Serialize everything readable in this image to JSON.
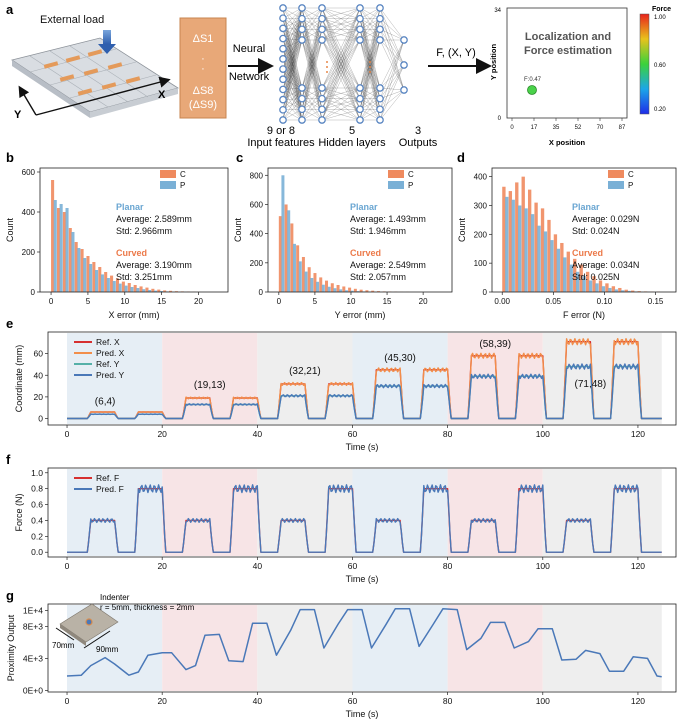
{
  "panels": {
    "a": {
      "label": "a",
      "external_load": "External load",
      "sensor_top": "ΔS1",
      "sensor_dots": "·",
      "sensor_bottom": "ΔS8",
      "sensor_bottom2": "(ΔS9)",
      "axis_x": "X",
      "axis_y": "Y",
      "arrow1_line1": "Neural",
      "arrow1_line2": "Network",
      "nn_inputs_line1": "9 or 8",
      "nn_inputs_line2": "Input features",
      "nn_hidden_line1": "5",
      "nn_hidden_line2": "Hidden layers",
      "nn_outputs_line1": "3",
      "nn_outputs_line2": "Outputs",
      "arrow2_label": "F, (X, Y)",
      "result_title_line1": "Localization and",
      "result_title_line2": "Force estimation",
      "result_xlabel": "X position",
      "result_ylabel": "Y position",
      "result_xticks": [
        "0",
        "17",
        "35",
        "52",
        "70",
        "87"
      ],
      "result_yticks": [
        "0",
        "34"
      ],
      "result_point_label": "F:0.47",
      "colorbar_title": "Force",
      "colorbar_ticks": [
        "1.00",
        "0.60",
        "0.20"
      ]
    },
    "b": {
      "label": "b"
    },
    "c": {
      "label": "c"
    },
    "d": {
      "label": "d"
    },
    "e": {
      "label": "e"
    },
    "f": {
      "label": "f"
    },
    "g": {
      "label": "g",
      "indenter_line1": "Indenter",
      "indenter_line2": "r = 5mm, thickness = 2mm",
      "dim_height": "70mm",
      "dim_width": "90mm"
    }
  },
  "chart_data": [
    {
      "id": "b",
      "type": "bar",
      "xlabel": "X error (mm)",
      "ylabel": "Count",
      "xlim": [
        -1.5,
        24
      ],
      "ylim": [
        0,
        620
      ],
      "xticks": [
        0,
        5,
        10,
        15,
        20
      ],
      "yticks": [
        0,
        200,
        400,
        600
      ],
      "bin_width": 0.8,
      "bin_start": 0,
      "series": [
        {
          "name": "C",
          "color": "#ef8a5e",
          "values": [
            560,
            420,
            400,
            320,
            250,
            215,
            180,
            150,
            125,
            100,
            82,
            68,
            52,
            45,
            35,
            28,
            22,
            16,
            12,
            8,
            6,
            4,
            3,
            2,
            1
          ]
        },
        {
          "name": "P",
          "color": "#7ab0d6",
          "values": [
            460,
            440,
            420,
            300,
            220,
            170,
            140,
            110,
            88,
            70,
            55,
            42,
            32,
            25,
            20,
            14,
            10,
            7,
            5,
            3,
            2,
            1,
            1,
            0,
            0
          ]
        }
      ],
      "legend": "top-right",
      "stats": {
        "planar_title": "Planar",
        "planar_avg": "Average: 2.589mm",
        "planar_std": "Std: 2.966mm",
        "curved_title": "Curved",
        "curved_avg": "Average: 3.190mm",
        "curved_std": "Std: 3.251mm"
      }
    },
    {
      "id": "c",
      "type": "bar",
      "xlabel": "Y error (mm)",
      "ylabel": "Count",
      "xlim": [
        -1.5,
        24
      ],
      "ylim": [
        0,
        850
      ],
      "xticks": [
        0,
        5,
        10,
        15,
        20
      ],
      "yticks": [
        0,
        200,
        400,
        600,
        800
      ],
      "bin_width": 0.8,
      "bin_start": 0,
      "series": [
        {
          "name": "C",
          "color": "#ef8a5e",
          "values": [
            520,
            600,
            470,
            320,
            240,
            170,
            130,
            100,
            78,
            60,
            48,
            38,
            30,
            22,
            16,
            12,
            9,
            6,
            4,
            3,
            2,
            1,
            1,
            0,
            0
          ]
        },
        {
          "name": "P",
          "color": "#7ab0d6",
          "values": [
            800,
            560,
            330,
            210,
            140,
            96,
            70,
            50,
            36,
            26,
            18,
            12,
            9,
            6,
            4,
            3,
            2,
            1,
            1,
            0,
            0,
            0,
            0,
            0,
            0
          ]
        }
      ],
      "legend": "top-right",
      "stats": {
        "planar_title": "Planar",
        "planar_avg": "Average: 1.493mm",
        "planar_std": "Std: 1.946mm",
        "curved_title": "Curved",
        "curved_avg": "Average: 2.549mm",
        "curved_std": "Std: 2.057mm"
      }
    },
    {
      "id": "d",
      "type": "bar",
      "xlabel": "F error (N)",
      "ylabel": "Count",
      "xlim": [
        -0.01,
        0.17
      ],
      "ylim": [
        0,
        430
      ],
      "xticks": [
        0.0,
        0.05,
        0.1,
        0.15
      ],
      "yticks": [
        0,
        100,
        200,
        300,
        400
      ],
      "bin_width": 0.0063,
      "bin_start": 0,
      "series": [
        {
          "name": "C",
          "color": "#ef8a5e",
          "values": [
            365,
            350,
            380,
            400,
            355,
            310,
            290,
            250,
            200,
            170,
            140,
            115,
            95,
            70,
            55,
            40,
            30,
            20,
            14,
            8,
            5,
            3,
            2,
            1,
            1
          ]
        },
        {
          "name": "P",
          "color": "#7ab0d6",
          "values": [
            330,
            320,
            300,
            290,
            270,
            230,
            210,
            180,
            150,
            120,
            95,
            70,
            55,
            40,
            30,
            20,
            14,
            9,
            6,
            4,
            2,
            1,
            1,
            0,
            0
          ]
        }
      ],
      "legend": "top-right",
      "stats": {
        "planar_title": "Planar",
        "planar_avg": "Average: 0.029N",
        "planar_std": "Std: 0.024N",
        "curved_title": "Curved",
        "curved_avg": "Average: 0.034N",
        "curved_std": "Std: 0.025N"
      }
    },
    {
      "id": "e",
      "type": "line",
      "xlabel": "Time (s)",
      "ylabel": "Coordinate (mm)",
      "xlim": [
        -4,
        128
      ],
      "ylim": [
        -6,
        80
      ],
      "xticks": [
        0,
        20,
        40,
        60,
        80,
        100,
        120
      ],
      "yticks": [
        0,
        20,
        40,
        60
      ],
      "segments": [
        {
          "start": 0,
          "end": 20,
          "color": "#e6eef5"
        },
        {
          "start": 20,
          "end": 40,
          "color": "#f7e4e6"
        },
        {
          "start": 40,
          "end": 60,
          "color": "#eeeeee"
        },
        {
          "start": 60,
          "end": 80,
          "color": "#e6eef5"
        },
        {
          "start": 80,
          "end": 100,
          "color": "#f7e4e6"
        },
        {
          "start": 100,
          "end": 125,
          "color": "#eeeeee"
        }
      ],
      "pulses": [
        {
          "t0": 5,
          "t1": 10,
          "x": 6,
          "y": 4
        },
        {
          "t0": 15,
          "t1": 20,
          "x": 6,
          "y": 4
        },
        {
          "t0": 25,
          "t1": 30,
          "x": 19,
          "y": 13
        },
        {
          "t0": 35,
          "t1": 40,
          "x": 19,
          "y": 13
        },
        {
          "t0": 45,
          "t1": 50,
          "x": 32,
          "y": 21
        },
        {
          "t0": 55,
          "t1": 60,
          "x": 32,
          "y": 21
        },
        {
          "t0": 65,
          "t1": 70,
          "x": 45,
          "y": 30
        },
        {
          "t0": 75,
          "t1": 80,
          "x": 45,
          "y": 30
        },
        {
          "t0": 85,
          "t1": 90,
          "x": 58,
          "y": 39
        },
        {
          "t0": 95,
          "t1": 100,
          "x": 58,
          "y": 39
        },
        {
          "t0": 105,
          "t1": 110,
          "x": 71,
          "y": 48
        },
        {
          "t0": 115,
          "t1": 120,
          "x": 71,
          "y": 48
        }
      ],
      "series": [
        {
          "name": "Ref. X",
          "color": "#d62f2f"
        },
        {
          "name": "Pred. X",
          "color": "#f28e4a"
        },
        {
          "name": "Ref. Y",
          "color": "#55b0a8"
        },
        {
          "name": "Pred. Y",
          "color": "#4a78b8"
        }
      ],
      "annotations": [
        {
          "text": "(6,4)",
          "x": 8,
          "y": 13
        },
        {
          "text": "(19,13)",
          "x": 30,
          "y": 28
        },
        {
          "text": "(32,21)",
          "x": 50,
          "y": 41
        },
        {
          "text": "(45,30)",
          "x": 70,
          "y": 53
        },
        {
          "text": "(58,39)",
          "x": 90,
          "y": 66
        },
        {
          "text": "(71,48)",
          "x": 110,
          "y": 29
        }
      ],
      "legend": "top-left"
    },
    {
      "id": "f",
      "type": "line",
      "xlabel": "Time (s)",
      "ylabel": "Force (N)",
      "xlim": [
        -4,
        128
      ],
      "ylim": [
        -0.06,
        1.06
      ],
      "xticks": [
        0,
        20,
        40,
        60,
        80,
        100,
        120
      ],
      "yticks": [
        0.0,
        0.2,
        0.4,
        0.6,
        0.8,
        1.0
      ],
      "segments": [
        {
          "start": 0,
          "end": 20,
          "color": "#e6eef5"
        },
        {
          "start": 20,
          "end": 40,
          "color": "#f7e4e6"
        },
        {
          "start": 40,
          "end": 60,
          "color": "#eeeeee"
        },
        {
          "start": 60,
          "end": 80,
          "color": "#e6eef5"
        },
        {
          "start": 80,
          "end": 100,
          "color": "#f7e4e6"
        },
        {
          "start": 100,
          "end": 125,
          "color": "#eeeeee"
        }
      ],
      "pulses": [
        {
          "t0": 5,
          "t1": 10,
          "f": 0.4
        },
        {
          "t0": 15,
          "t1": 20,
          "f": 0.8
        },
        {
          "t0": 25,
          "t1": 30,
          "f": 0.4
        },
        {
          "t0": 35,
          "t1": 40,
          "f": 0.8
        },
        {
          "t0": 45,
          "t1": 50,
          "f": 0.4
        },
        {
          "t0": 55,
          "t1": 60,
          "f": 0.8
        },
        {
          "t0": 65,
          "t1": 70,
          "f": 0.4
        },
        {
          "t0": 75,
          "t1": 80,
          "f": 0.8
        },
        {
          "t0": 85,
          "t1": 90,
          "f": 0.4
        },
        {
          "t0": 95,
          "t1": 100,
          "f": 0.8
        },
        {
          "t0": 105,
          "t1": 110,
          "f": 0.4
        },
        {
          "t0": 115,
          "t1": 120,
          "f": 0.8
        }
      ],
      "series": [
        {
          "name": "Ref. F",
          "color": "#d62f2f"
        },
        {
          "name": "Pred. F",
          "color": "#4a78b8"
        }
      ],
      "legend": "top-left"
    },
    {
      "id": "g",
      "type": "line",
      "xlabel": "Time (s)",
      "ylabel": "Proximity Output",
      "xlim": [
        -4,
        128
      ],
      "ylim": [
        -200,
        10800
      ],
      "xticks": [
        0,
        20,
        40,
        60,
        80,
        100,
        120
      ],
      "yticks": [
        0,
        4000,
        8000,
        10000
      ],
      "ytick_labels": [
        "0E+0",
        "4E+3",
        "8E+3",
        "1E+4"
      ],
      "segments": [
        {
          "start": 0,
          "end": 20,
          "color": "#e6eef5"
        },
        {
          "start": 20,
          "end": 40,
          "color": "#f7e4e6"
        },
        {
          "start": 40,
          "end": 60,
          "color": "#eeeeee"
        },
        {
          "start": 60,
          "end": 80,
          "color": "#e6eef5"
        },
        {
          "start": 80,
          "end": 100,
          "color": "#f7e4e6"
        },
        {
          "start": 100,
          "end": 125,
          "color": "#eeeeee"
        }
      ],
      "series": [
        {
          "color": "#4a78b8",
          "points": [
            [
              0,
              1800
            ],
            [
              3,
              1900
            ],
            [
              5,
              3100
            ],
            [
              8,
              4100
            ],
            [
              10,
              3300
            ],
            [
              13,
              1900
            ],
            [
              15,
              2300
            ],
            [
              17,
              4400
            ],
            [
              20,
              4700
            ],
            [
              22,
              4700
            ],
            [
              25,
              2600
            ],
            [
              27,
              3100
            ],
            [
              29,
              6900
            ],
            [
              32,
              7000
            ],
            [
              34,
              3700
            ],
            [
              37,
              3600
            ],
            [
              39,
              8400
            ],
            [
              42,
              8400
            ],
            [
              44,
              4400
            ],
            [
              47,
              7500
            ],
            [
              49,
              10100
            ],
            [
              52,
              10100
            ],
            [
              54,
              5300
            ],
            [
              57,
              8300
            ],
            [
              59,
              10100
            ],
            [
              62,
              10100
            ],
            [
              64,
              5300
            ],
            [
              67,
              8200
            ],
            [
              69,
              10200
            ],
            [
              72,
              10200
            ],
            [
              74,
              5500
            ],
            [
              77,
              8300
            ],
            [
              79,
              10200
            ],
            [
              82,
              10100
            ],
            [
              84,
              5100
            ],
            [
              87,
              6500
            ],
            [
              89,
              8500
            ],
            [
              92,
              8500
            ],
            [
              94,
              5300
            ],
            [
              97,
              6100
            ],
            [
              99,
              7700
            ],
            [
              102,
              7700
            ],
            [
              104,
              3800
            ],
            [
              107,
              3900
            ],
            [
              109,
              5000
            ],
            [
              112,
              4600
            ],
            [
              114,
              2400
            ],
            [
              117,
              2400
            ],
            [
              119,
              4200
            ],
            [
              122,
              4000
            ],
            [
              124,
              1800
            ],
            [
              125,
              1700
            ]
          ]
        }
      ]
    }
  ]
}
